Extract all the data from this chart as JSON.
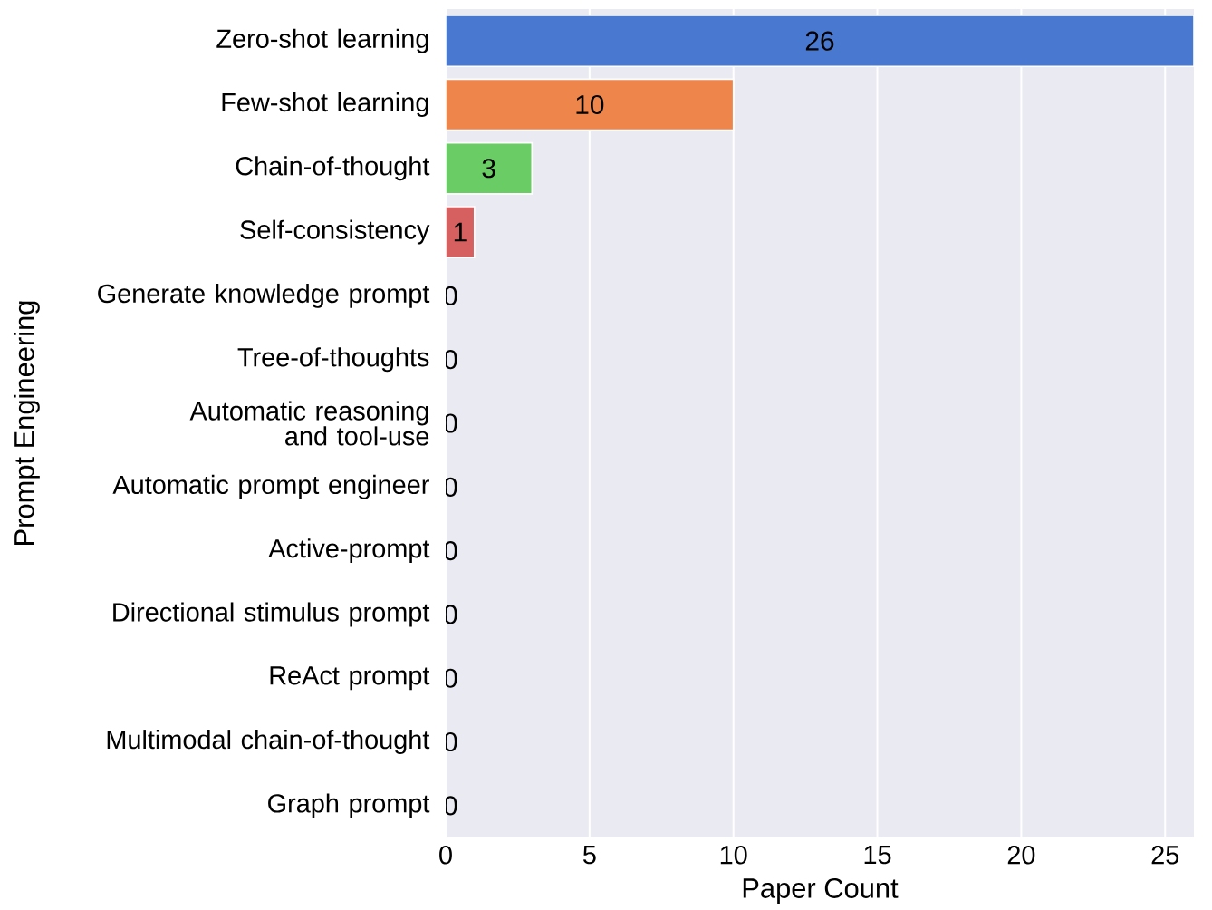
{
  "chart_data": {
    "type": "bar",
    "orientation": "horizontal",
    "xlabel": "Paper Count",
    "ylabel": "Prompt Engineering",
    "categories": [
      "Zero-shot learning",
      "Few-shot learning",
      "Chain-of-thought",
      "Self-consistency",
      "Generate knowledge prompt",
      "Tree-of-thoughts",
      "Automatic reasoning and tool-use",
      "Automatic prompt engineer",
      "Active-prompt",
      "Directional stimulus prompt",
      "ReAct prompt",
      "Multimodal chain-of-thought",
      "Graph prompt"
    ],
    "values": [
      26,
      10,
      3,
      1,
      0,
      0,
      0,
      0,
      0,
      0,
      0,
      0,
      0
    ],
    "colors": [
      "#4878d0",
      "#ee854a",
      "#6acc64",
      "#d65f5f",
      "#956cb4",
      "#8c613c",
      "#dc7ec0",
      "#797979",
      "#d5bb67",
      "#82c6e2",
      "#4878d0",
      "#ee854a",
      "#6acc64"
    ],
    "xlim": [
      0,
      26
    ],
    "xticks": [
      0,
      5,
      10,
      15,
      20,
      25
    ],
    "grid": "x",
    "data_labels": true
  }
}
